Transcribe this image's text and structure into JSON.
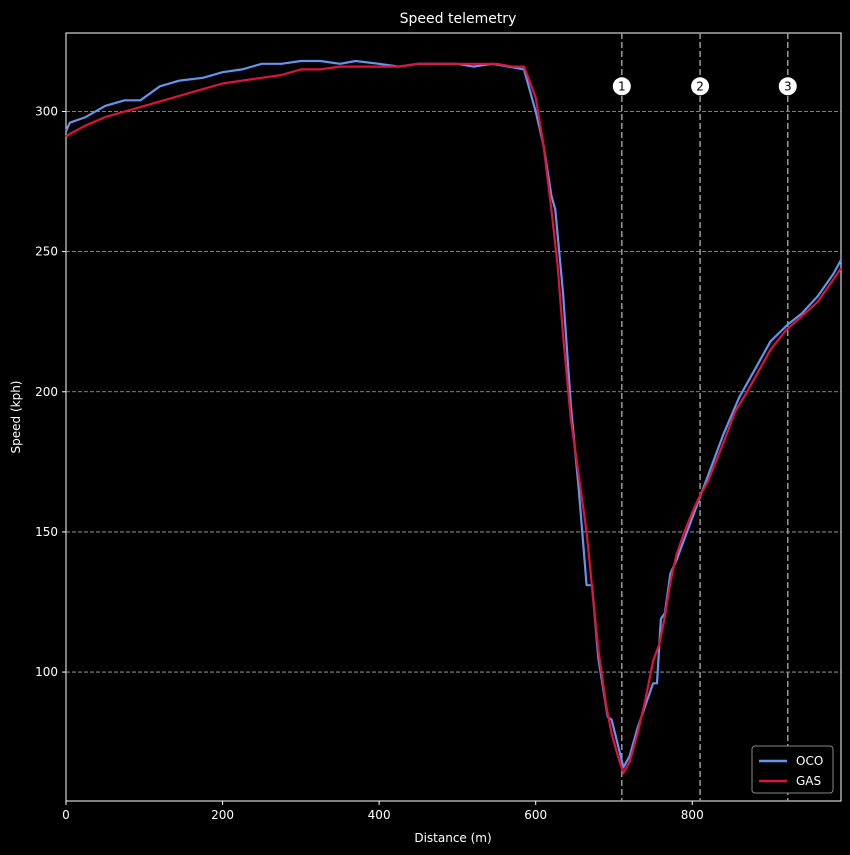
{
  "chart_data": {
    "type": "line",
    "title": "Speed telemetry",
    "xlabel": "Distance (m)",
    "ylabel": "Speed (kph)",
    "xlim": [
      0,
      990
    ],
    "ylim": [
      54,
      328
    ],
    "xticks": [
      0,
      200,
      400,
      600,
      800
    ],
    "yticks": [
      100,
      150,
      200,
      250,
      300
    ],
    "grid": "horizontal dashed",
    "legend_position": "bottom-right",
    "corner_markers": [
      {
        "label": "1",
        "x": 710
      },
      {
        "label": "2",
        "x": 810
      },
      {
        "label": "3",
        "x": 922
      }
    ],
    "series": [
      {
        "name": "OCO",
        "color": "#6495ED",
        "points": [
          [
            0,
            293
          ],
          [
            5,
            296
          ],
          [
            25,
            298
          ],
          [
            50,
            302
          ],
          [
            75,
            304
          ],
          [
            95,
            304
          ],
          [
            120,
            309
          ],
          [
            145,
            311
          ],
          [
            175,
            312
          ],
          [
            200,
            314
          ],
          [
            225,
            315
          ],
          [
            250,
            317
          ],
          [
            275,
            317
          ],
          [
            300,
            318
          ],
          [
            325,
            318
          ],
          [
            350,
            317
          ],
          [
            370,
            318
          ],
          [
            400,
            317
          ],
          [
            425,
            316
          ],
          [
            450,
            317
          ],
          [
            475,
            317
          ],
          [
            500,
            317
          ],
          [
            520,
            316
          ],
          [
            545,
            317
          ],
          [
            565,
            316
          ],
          [
            585,
            315
          ],
          [
            600,
            300
          ],
          [
            610,
            288
          ],
          [
            620,
            270
          ],
          [
            625,
            265
          ],
          [
            635,
            235
          ],
          [
            645,
            195
          ],
          [
            655,
            165
          ],
          [
            665,
            131
          ],
          [
            672,
            131
          ],
          [
            680,
            105
          ],
          [
            692,
            84
          ],
          [
            697,
            83
          ],
          [
            705,
            74
          ],
          [
            712,
            66
          ],
          [
            720,
            70
          ],
          [
            730,
            80
          ],
          [
            740,
            88
          ],
          [
            750,
            96
          ],
          [
            755,
            96
          ],
          [
            760,
            119
          ],
          [
            765,
            121
          ],
          [
            772,
            135
          ],
          [
            780,
            140
          ],
          [
            800,
            155
          ],
          [
            820,
            170
          ],
          [
            840,
            185
          ],
          [
            860,
            198
          ],
          [
            880,
            208
          ],
          [
            900,
            218
          ],
          [
            922,
            224
          ],
          [
            940,
            228
          ],
          [
            960,
            234
          ],
          [
            980,
            242
          ],
          [
            990,
            247
          ]
        ]
      },
      {
        "name": "GAS",
        "color": "#DC143C",
        "points": [
          [
            0,
            291
          ],
          [
            5,
            292
          ],
          [
            25,
            295
          ],
          [
            50,
            298
          ],
          [
            75,
            300
          ],
          [
            100,
            302
          ],
          [
            125,
            304
          ],
          [
            150,
            306
          ],
          [
            175,
            308
          ],
          [
            200,
            310
          ],
          [
            225,
            311
          ],
          [
            250,
            312
          ],
          [
            275,
            313
          ],
          [
            300,
            315
          ],
          [
            325,
            315
          ],
          [
            350,
            316
          ],
          [
            375,
            316
          ],
          [
            400,
            316
          ],
          [
            425,
            316
          ],
          [
            450,
            317
          ],
          [
            475,
            317
          ],
          [
            500,
            317
          ],
          [
            525,
            317
          ],
          [
            550,
            317
          ],
          [
            570,
            316
          ],
          [
            585,
            316
          ],
          [
            600,
            305
          ],
          [
            610,
            288
          ],
          [
            620,
            265
          ],
          [
            628,
            245
          ],
          [
            635,
            220
          ],
          [
            645,
            190
          ],
          [
            655,
            170
          ],
          [
            665,
            150
          ],
          [
            672,
            130
          ],
          [
            680,
            108
          ],
          [
            690,
            88
          ],
          [
            697,
            78
          ],
          [
            705,
            70
          ],
          [
            712,
            64
          ],
          [
            720,
            68
          ],
          [
            730,
            78
          ],
          [
            740,
            90
          ],
          [
            750,
            104
          ],
          [
            758,
            110
          ],
          [
            765,
            120
          ],
          [
            772,
            132
          ],
          [
            780,
            142
          ],
          [
            790,
            150
          ],
          [
            800,
            157
          ],
          [
            810,
            163
          ],
          [
            820,
            168
          ],
          [
            840,
            182
          ],
          [
            855,
            193
          ],
          [
            870,
            200
          ],
          [
            880,
            205
          ],
          [
            900,
            215
          ],
          [
            920,
            222
          ],
          [
            940,
            227
          ],
          [
            960,
            232
          ],
          [
            980,
            240
          ],
          [
            990,
            244
          ]
        ]
      }
    ]
  }
}
